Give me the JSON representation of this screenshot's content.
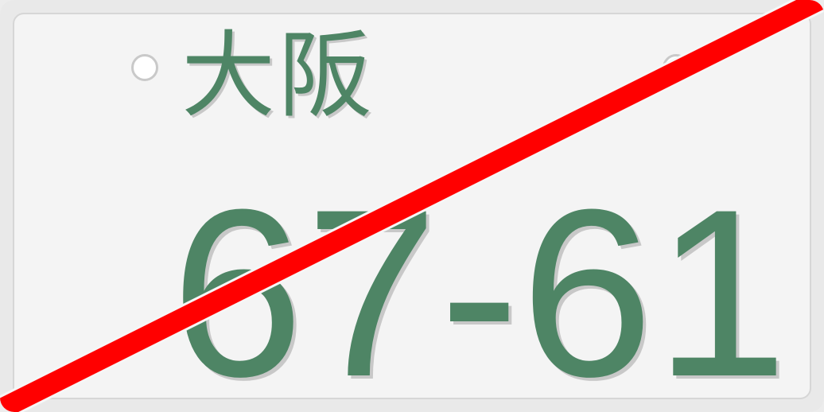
{
  "plate": {
    "region": "大阪",
    "number": "67-61",
    "text_color": "#4e8565",
    "background_color": "#f4f4f4",
    "strike_color": "#ff0000",
    "crossed_out": true
  }
}
